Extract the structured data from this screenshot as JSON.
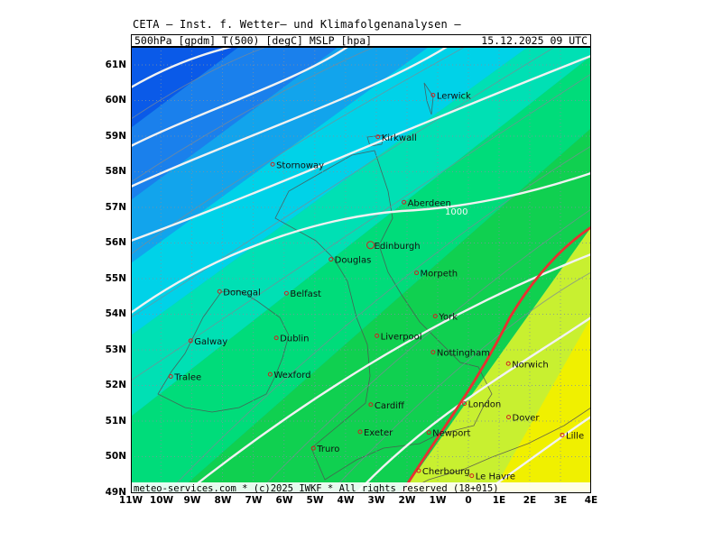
{
  "header": {
    "title": "CETA – Inst. f. Wetter– und Klimafolgenanalysen –",
    "fields": "500hPa [gpdm] T(500) [degC] MSLP [hpa]",
    "valid": "15.12.2025 09 UTC"
  },
  "footer": {
    "credit": "meteo-services.com * (c)2025 IWKF * All rights reserved (18+015)"
  },
  "axes": {
    "lat_labels": [
      "61N",
      "60N",
      "59N",
      "58N",
      "57N",
      "56N",
      "55N",
      "54N",
      "53N",
      "52N",
      "51N",
      "50N",
      "49N"
    ],
    "lon_labels": [
      "11W",
      "10W",
      "9W",
      "8W",
      "7W",
      "6W",
      "5W",
      "4W",
      "3W",
      "2W",
      "1W",
      "0",
      "1E",
      "2E",
      "3E",
      "4E"
    ]
  },
  "isobar_label": "1000",
  "cities": [
    {
      "name": "Lerwick",
      "lon": -1.15,
      "lat": 60.15
    },
    {
      "name": "Kirkwall",
      "lon": -2.95,
      "lat": 58.98
    },
    {
      "name": "Stornoway",
      "lon": -6.38,
      "lat": 58.21
    },
    {
      "name": "Aberdeen",
      "lon": -2.1,
      "lat": 57.15
    },
    {
      "name": "Edinburgh",
      "lon": -3.19,
      "lat": 55.95
    },
    {
      "name": "Douglas",
      "lon": -4.48,
      "lat": 55.55
    },
    {
      "name": "Morpeth",
      "lon": -1.69,
      "lat": 55.17
    },
    {
      "name": "Donegal",
      "lon": -8.11,
      "lat": 54.65
    },
    {
      "name": "Belfast",
      "lon": -5.93,
      "lat": 54.6
    },
    {
      "name": "York",
      "lon": -1.08,
      "lat": 53.96
    },
    {
      "name": "Galway",
      "lon": -9.05,
      "lat": 53.27
    },
    {
      "name": "Dublin",
      "lon": -6.26,
      "lat": 53.35
    },
    {
      "name": "Liverpool",
      "lon": -2.98,
      "lat": 53.41
    },
    {
      "name": "Nottingham",
      "lon": -1.15,
      "lat": 52.95
    },
    {
      "name": "Norwich",
      "lon": 1.3,
      "lat": 52.63
    },
    {
      "name": "Tralee",
      "lon": -9.7,
      "lat": 52.27
    },
    {
      "name": "Wexford",
      "lon": -6.46,
      "lat": 52.33
    },
    {
      "name": "Cardiff",
      "lon": -3.18,
      "lat": 51.48
    },
    {
      "name": "London",
      "lon": -0.13,
      "lat": 51.51
    },
    {
      "name": "Dover",
      "lon": 1.31,
      "lat": 51.13
    },
    {
      "name": "Exeter",
      "lon": -3.53,
      "lat": 50.72
    },
    {
      "name": "Newport",
      "lon": -1.29,
      "lat": 50.7
    },
    {
      "name": "Lille",
      "lon": 3.06,
      "lat": 50.63
    },
    {
      "name": "Truro",
      "lon": -5.05,
      "lat": 50.26
    },
    {
      "name": "Le Havre",
      "lon": 0.11,
      "lat": 49.49
    },
    {
      "name": "Cherbourg",
      "lon": -1.62,
      "lat": 49.63
    }
  ]
}
